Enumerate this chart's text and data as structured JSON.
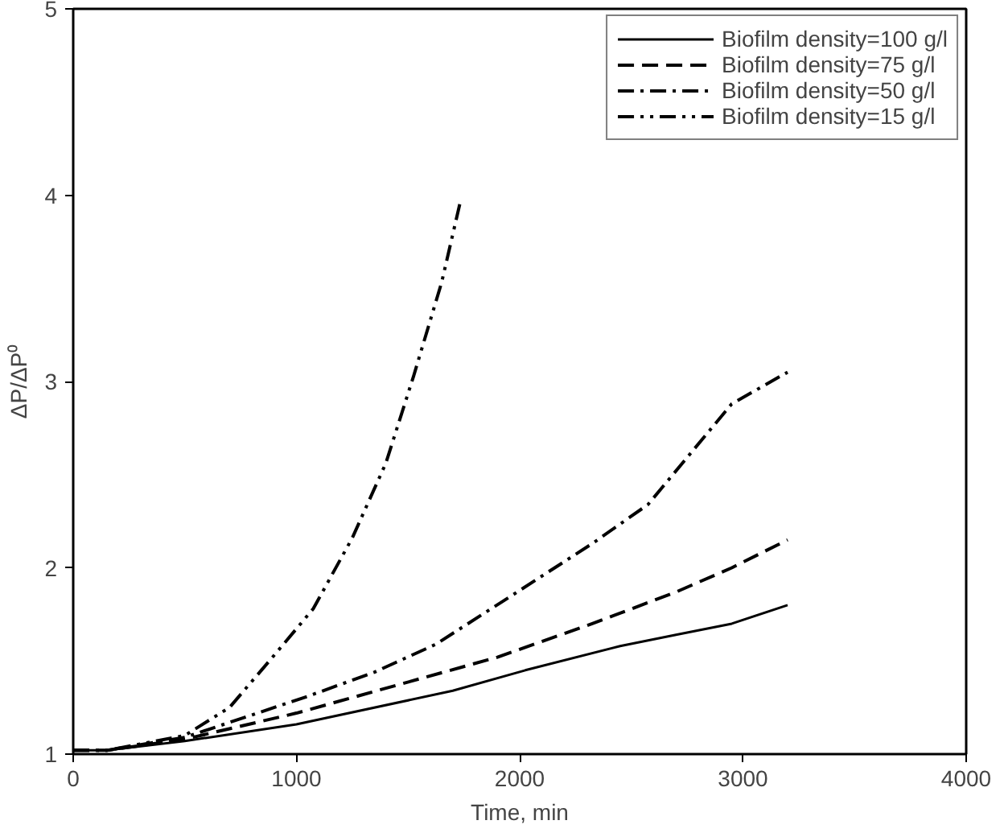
{
  "chart_data": {
    "type": "line",
    "xlabel": "Time, min",
    "ylabel": "ΔP/ΔP⁰",
    "xlim": [
      0,
      4000
    ],
    "ylim": [
      1,
      5
    ],
    "xticks": [
      0,
      1000,
      2000,
      3000,
      4000
    ],
    "yticks": [
      1,
      2,
      3,
      4,
      5
    ],
    "grid": false,
    "legend": "top right",
    "marker": "none",
    "series": [
      {
        "name": "Biofilm density=100 g/l",
        "color": "#000000",
        "line_style": "solid",
        "x": [
          0,
          150,
          500,
          1000,
          1700,
          2025,
          2450,
          2700,
          2950,
          3200
        ],
        "values": [
          1.02,
          1.02,
          1.07,
          1.16,
          1.34,
          1.45,
          1.58,
          1.64,
          1.7,
          1.8
        ]
      },
      {
        "name": "Biofilm density=75 g/l",
        "color": "#000000",
        "line_style": "dashed",
        "x": [
          0,
          150,
          500,
          1000,
          1450,
          1900,
          2325,
          2700,
          2950,
          3200
        ],
        "values": [
          1.02,
          1.02,
          1.08,
          1.22,
          1.37,
          1.52,
          1.7,
          1.87,
          2.0,
          2.15
        ]
      },
      {
        "name": "Biofilm density=50 g/l",
        "color": "#000000",
        "line_style": "dashdot",
        "x": [
          0,
          150,
          500,
          1050,
          1350,
          1625,
          1950,
          2325,
          2575,
          2950,
          3200
        ],
        "values": [
          1.02,
          1.02,
          1.09,
          1.31,
          1.44,
          1.59,
          1.84,
          2.13,
          2.34,
          2.88,
          3.05
        ]
      },
      {
        "name": "Biofilm density=15 g/l",
        "color": "#000000",
        "line_style": "dashdotdot",
        "x": [
          0,
          150,
          500,
          700,
          900,
          1075,
          1250,
          1400,
          1525,
          1650,
          1737
        ],
        "values": [
          1.02,
          1.02,
          1.1,
          1.25,
          1.53,
          1.78,
          2.16,
          2.56,
          3.03,
          3.53,
          3.98
        ]
      }
    ]
  }
}
